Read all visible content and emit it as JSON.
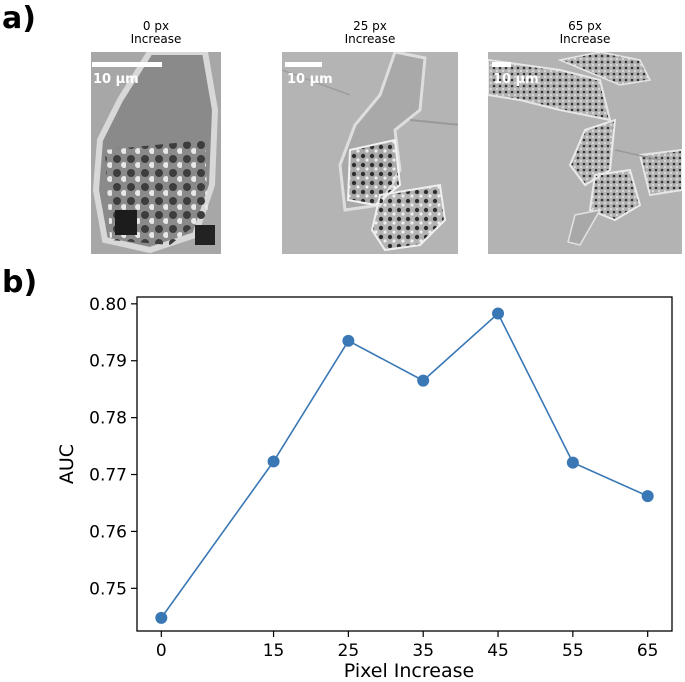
{
  "panels": {
    "a_label": "a)",
    "b_label": "b)"
  },
  "microscopy": {
    "tiles": [
      {
        "caption_line1": "0 px",
        "caption_line2": "Increase",
        "scale_label": "10 µm"
      },
      {
        "caption_line1": "25 px",
        "caption_line2": "Increase",
        "scale_label": "10 µm"
      },
      {
        "caption_line1": "65 px",
        "caption_line2": "Increase",
        "scale_label": "10 µm"
      }
    ]
  },
  "colors": {
    "series": "#3a78b5",
    "image_bg": "#aaaaaa",
    "scalebar": "#ffffff"
  },
  "chart_data": {
    "type": "line",
    "title": "",
    "xlabel": "Pixel Increase",
    "ylabel": "AUC",
    "x": [
      0,
      15,
      25,
      35,
      45,
      55,
      65
    ],
    "x_tick_labels": [
      "0",
      "15",
      "25",
      "35",
      "45",
      "55",
      "65"
    ],
    "y_tick_values": [
      0.75,
      0.76,
      0.77,
      0.78,
      0.79,
      0.8
    ],
    "y_tick_labels": [
      "0.75",
      "0.76",
      "0.77",
      "0.78",
      "0.79",
      "0.80"
    ],
    "series": [
      {
        "values": [
          0.7448,
          0.7723,
          0.7935,
          0.7865,
          0.7983,
          0.7721,
          0.7662
        ]
      }
    ],
    "xlim": [
      -3.25,
      68.25
    ],
    "ylim": [
      0.7425,
      0.8012
    ],
    "grid": false,
    "legend": "none"
  }
}
